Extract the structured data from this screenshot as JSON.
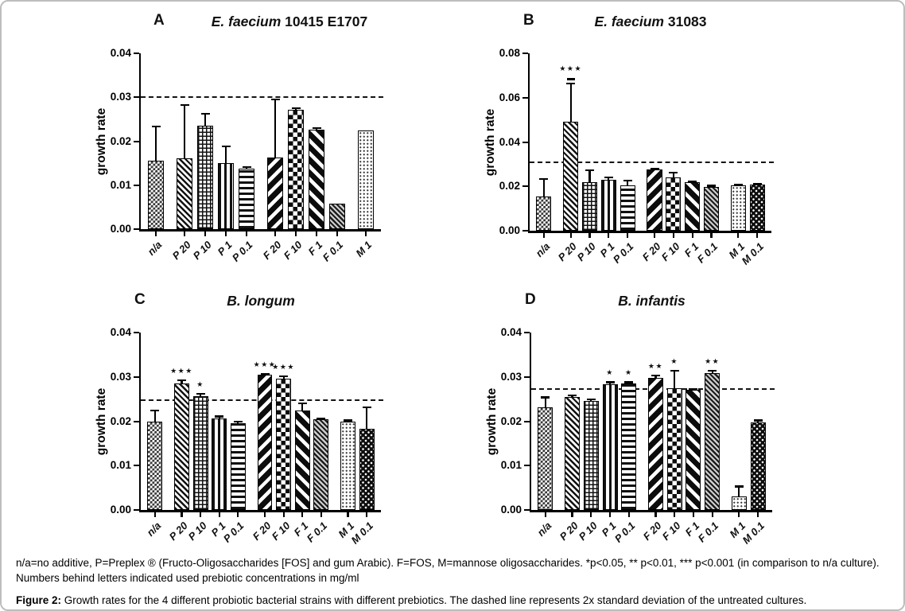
{
  "figure": {
    "note": "n/a=no additive, P=Preplex ® (Fructo-Oligosaccharides [FOS] and gum Arabic). F=FOS, M=mannose oligosaccharides. *p<0.05, ** p<0.01, *** p<0.001 (in comparison to n/a culture). Numbers behind letters indicated used prebiotic concentrations in mg/ml",
    "caption_label": "Figure 2:",
    "caption_text": "Growth rates for the 4 different probiotic bacterial strains with different prebiotics. The dashed line represents 2x standard deviation of the untreated cultures."
  },
  "chart_data": [
    {
      "type": "bar",
      "panel": "A",
      "title_italic": "E. faecium",
      "title_plain": "10415 E1707",
      "ylabel": "growth rate",
      "ylim": [
        0,
        0.04
      ],
      "yticks": [
        "0.00",
        "0.01",
        "0.02",
        "0.03",
        "0.04"
      ],
      "dashed_line": 0.03,
      "grid": false,
      "categories": [
        "n/a",
        "P 20",
        "P 10",
        "P 1",
        "P 0.1",
        "F 20",
        "F 10",
        "F 1",
        "F 0.1",
        "M 1"
      ],
      "values": [
        0.0156,
        0.0161,
        0.0235,
        0.0151,
        0.0138,
        0.0163,
        0.0272,
        0.0226,
        0.0058,
        0.0224
      ],
      "errors": [
        0.0078,
        0.0122,
        0.0027,
        0.0038,
        0.0004,
        0.0132,
        0.0003,
        0.0004,
        0,
        0
      ],
      "sig": [
        "",
        "",
        "",
        "",
        "",
        "",
        "",
        "",
        "",
        ""
      ],
      "patterns": [
        "check-sm",
        "diag-thin",
        "grid",
        "vert",
        "horiz",
        "diag-bold-up",
        "check-lg",
        "diag-bold-down",
        "diag-fine",
        "dots-light"
      ]
    },
    {
      "type": "bar",
      "panel": "B",
      "title_italic": "E. faecium",
      "title_plain": "31083",
      "ylabel": "growth rate",
      "ylim": [
        0,
        0.08
      ],
      "yticks": [
        "0.00",
        "0.02",
        "0.04",
        "0.06",
        "0.08"
      ],
      "dashed_line": 0.031,
      "grid": false,
      "categories": [
        "n/a",
        "P 20",
        "P 10",
        "P 1",
        "P 0.1",
        "F 20",
        "F 10",
        "F 1",
        "F 0.1",
        "M 1",
        "M 0.1"
      ],
      "values": [
        0.0154,
        0.049,
        0.0219,
        0.0228,
        0.0206,
        0.0277,
        0.0241,
        0.0219,
        0.0199,
        0.0206,
        0.0207
      ],
      "errors": [
        0.0079,
        0.0175,
        0.0054,
        0.0013,
        0.002,
        0.0003,
        0.0021,
        0.0004,
        0.0004,
        0.0003,
        0.0003
      ],
      "sig": [
        "",
        "***",
        "",
        "",
        "",
        "",
        "",
        "",
        "",
        "",
        ""
      ],
      "sig_dash": {
        "index": 1,
        "value": 0.069
      },
      "patterns": [
        "check-sm",
        "diag-thin",
        "grid",
        "vert",
        "horiz",
        "diag-bold-up",
        "check-lg",
        "diag-bold-down",
        "diag-fine",
        "dots-light",
        "dots-dark"
      ]
    },
    {
      "type": "bar",
      "panel": "C",
      "title_italic": "B. longum",
      "title_plain": "",
      "ylabel": "growth rate",
      "ylim": [
        0,
        0.04
      ],
      "yticks": [
        "0.00",
        "0.01",
        "0.02",
        "0.03",
        "0.04"
      ],
      "dashed_line": 0.0247,
      "grid": false,
      "categories": [
        "n/a",
        "P 20",
        "P 10",
        "P 1",
        "P 0.1",
        "F 20",
        "F 10",
        "F 1",
        "F 0.1",
        "M 1",
        "M 0.1"
      ],
      "values": [
        0.02,
        0.0286,
        0.0257,
        0.0207,
        0.0196,
        0.0305,
        0.0296,
        0.0225,
        0.0204,
        0.0199,
        0.0183
      ],
      "errors": [
        0.0025,
        0.0007,
        0.0005,
        0.0004,
        0.0004,
        0.0002,
        0.0005,
        0.0016,
        0.0003,
        0.0003,
        0.0049
      ],
      "sig": [
        "",
        "***",
        "*",
        "",
        "",
        "***",
        "***",
        "",
        "",
        "",
        ""
      ],
      "patterns": [
        "check-sm",
        "diag-thin",
        "grid",
        "vert",
        "horiz",
        "diag-bold-up",
        "check-lg",
        "diag-bold-down",
        "diag-fine",
        "dots-light",
        "dots-dark"
      ]
    },
    {
      "type": "bar",
      "panel": "D",
      "title_italic": "B. infantis",
      "title_plain": "",
      "ylabel": "growth rate",
      "ylim": [
        0,
        0.04
      ],
      "yticks": [
        "0.00",
        "0.01",
        "0.02",
        "0.03",
        "0.04"
      ],
      "dashed_line": 0.0272,
      "grid": false,
      "categories": [
        "n/a",
        "P 20",
        "P 10",
        "P 1",
        "P 0.1",
        "F 20",
        "F 10",
        "F 1",
        "F 0.1",
        "M 1",
        "M 0.1"
      ],
      "values": [
        0.0232,
        0.0255,
        0.0246,
        0.0284,
        0.0285,
        0.0298,
        0.0275,
        0.027,
        0.0308,
        0.0031,
        0.0197
      ],
      "errors": [
        0.0022,
        0.0003,
        0.0003,
        0.0004,
        0.0003,
        0.0006,
        0.0039,
        0.0003,
        0.0006,
        0.0022,
        0.0005
      ],
      "sig": [
        "",
        "",
        "",
        "*",
        "*",
        "**",
        "*",
        "",
        "**",
        "",
        ""
      ],
      "patterns": [
        "check-sm",
        "diag-thin",
        "grid",
        "vert",
        "horiz",
        "diag-bold-up",
        "check-lg",
        "diag-bold-down",
        "diag-fine",
        "dots-light",
        "dots-dark"
      ]
    }
  ]
}
